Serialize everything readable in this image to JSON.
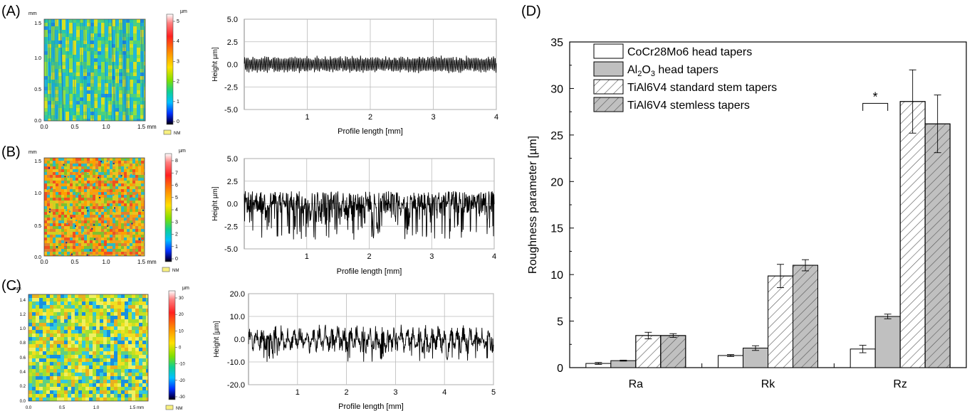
{
  "panels": {
    "A": {
      "label": "(A)",
      "map": {
        "unit": "mm",
        "y_ticks": [
          "1.5",
          "1.0",
          "0.5",
          "0.0"
        ],
        "x_ticks": [
          "0.0",
          "0.5",
          "1.0",
          "1.5 mm"
        ],
        "colorbar_unit": "µm",
        "colorbar_ticks": [
          "5",
          "4",
          "3",
          "2",
          "1",
          "0"
        ],
        "nm_label": "NM",
        "colors": [
          "#ffffff",
          "#ff3a3a",
          "#ff8c00",
          "#ffe000",
          "#9be000",
          "#1fd070",
          "#00c8e0",
          "#0070ff",
          "#000080",
          "#000000"
        ]
      },
      "profile": {
        "ylabel": "Height µm]",
        "xlabel": "Profile length [mm]",
        "y_ticks": [
          "5.0",
          "2.5",
          "0.0",
          "-2.5",
          "-5.0"
        ],
        "x_ticks": [
          "1",
          "2",
          "3",
          "4"
        ],
        "y_range": [
          -5,
          5
        ],
        "x_range": [
          0,
          4
        ]
      }
    },
    "B": {
      "label": "(B)",
      "map": {
        "unit": "mm",
        "y_ticks": [
          "1.5",
          "1.0",
          "0.5",
          "0.0"
        ],
        "x_ticks": [
          "0.0",
          "0.5",
          "1.0",
          "1.5 mm"
        ],
        "colorbar_unit": "µm",
        "colorbar_ticks": [
          "8",
          "7",
          "6",
          "5",
          "4",
          "3",
          "2",
          "1",
          "0"
        ],
        "nm_label": "NM"
      },
      "profile": {
        "ylabel": "Height µm]",
        "xlabel": "Profile length [mm]",
        "y_ticks": [
          "5.0",
          "2.5",
          "0.0",
          "-2.5",
          "-5.0"
        ],
        "x_ticks": [
          "1",
          "2",
          "3",
          "4"
        ],
        "y_range": [
          -5,
          5
        ],
        "x_range": [
          0,
          4
        ]
      }
    },
    "C": {
      "label": "(C)",
      "map": {
        "unit": "mm",
        "y_ticks": [
          "1.4",
          "1.2",
          "1.0",
          "0.8",
          "0.6",
          "0.4",
          "0.2",
          "0.0"
        ],
        "x_ticks": [
          "0.0",
          "0.5",
          "1.0",
          "1.5 mm"
        ],
        "colorbar_unit": "µm",
        "colorbar_ticks": [
          "30",
          "20",
          "10",
          "0",
          "-10",
          "-20",
          "-30"
        ],
        "nm_label": "NM"
      },
      "profile": {
        "ylabel": "Height [µm]",
        "xlabel": "Profile length [mm]",
        "y_ticks": [
          "20.0",
          "10.0",
          "0.0",
          "-10.0",
          "-20.0"
        ],
        "x_ticks": [
          "1",
          "2",
          "3",
          "4",
          "5"
        ],
        "y_range": [
          -20,
          20
        ],
        "x_range": [
          0,
          5
        ]
      }
    }
  },
  "chart_data": {
    "panel_label": "(D)",
    "type": "bar",
    "categories": [
      "Ra",
      "Rk",
      "Rz"
    ],
    "ylabel": "Roughness parameter [µm]",
    "ylim": [
      0,
      35
    ],
    "y_ticks": [
      "0",
      "5",
      "10",
      "15",
      "20",
      "25",
      "30",
      "35"
    ],
    "legend_placement": "top-left",
    "series": [
      {
        "name": "CoCr28Mo6 head tapers",
        "name_parts": [
          [
            "CoCr28Mo6 head tapers",
            ""
          ]
        ],
        "values": [
          0.45,
          1.3,
          2.0
        ],
        "errors": [
          0.1,
          0.1,
          0.4
        ],
        "fill": "white",
        "hatch": false
      },
      {
        "name": "Al2O3 head tapers",
        "name_parts": [
          [
            "Al",
            ""
          ],
          [
            "2",
            "sub"
          ],
          [
            "O",
            ""
          ],
          [
            "3",
            "sub"
          ],
          [
            " head tapers",
            ""
          ]
        ],
        "values": [
          0.75,
          2.1,
          5.5
        ],
        "errors": [
          0.05,
          0.25,
          0.25
        ],
        "fill": "gray",
        "hatch": false
      },
      {
        "name": "TiAl6V4 standard stem tapers",
        "name_parts": [
          [
            "TiAl6V4 standard stem tapers",
            ""
          ]
        ],
        "values": [
          3.45,
          9.85,
          28.6
        ],
        "errors": [
          0.35,
          1.25,
          3.4
        ],
        "fill": "white",
        "hatch": true
      },
      {
        "name": "TiAl6V4 stemless tapers",
        "name_parts": [
          [
            "TiAl6V4 stemless tapers",
            ""
          ]
        ],
        "values": [
          3.45,
          11.0,
          26.2
        ],
        "errors": [
          0.2,
          0.6,
          3.1
        ],
        "fill": "gray",
        "hatch": true
      }
    ],
    "significance": {
      "label": "*",
      "category": "Rz",
      "series_pair": [
        0,
        1
      ]
    }
  }
}
